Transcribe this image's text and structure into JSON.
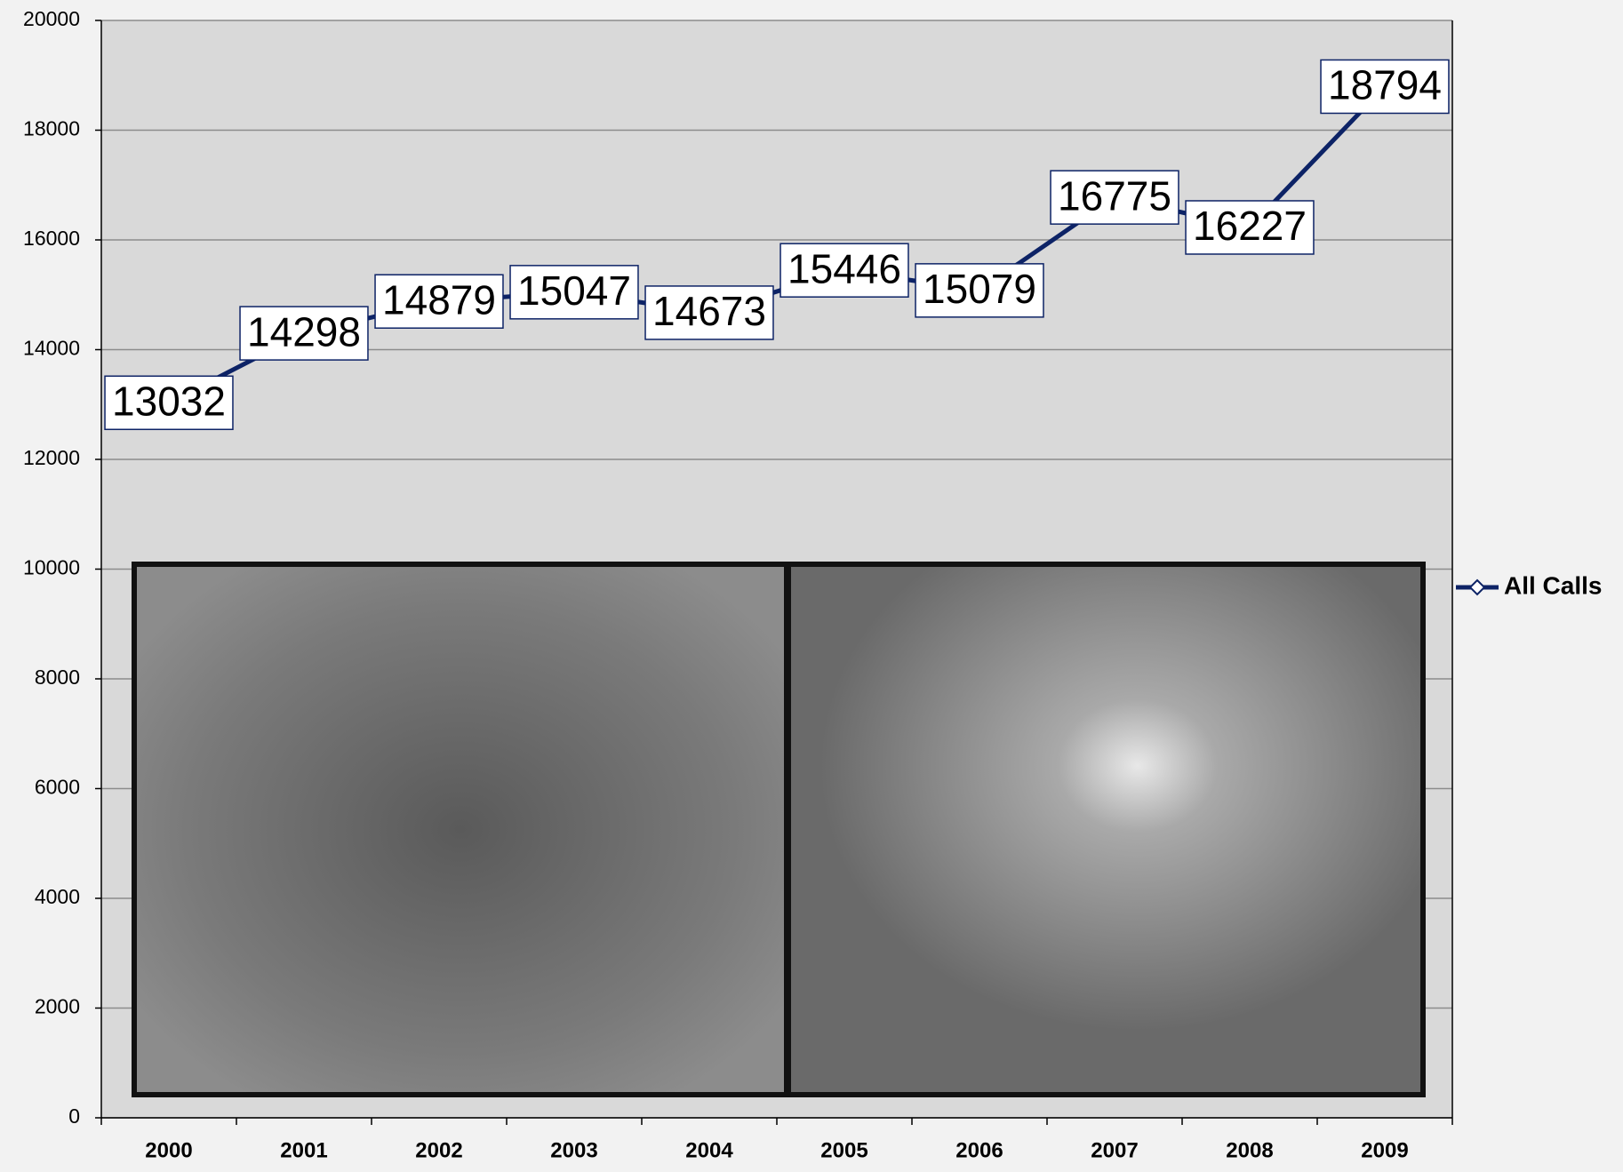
{
  "chart_data": {
    "type": "line",
    "categories": [
      "2000",
      "2001",
      "2002",
      "2003",
      "2004",
      "2005",
      "2006",
      "2007",
      "2008",
      "2009"
    ],
    "series": [
      {
        "name": "All Calls",
        "color": "#0d2366",
        "values": [
          13032,
          14298,
          14879,
          15047,
          14673,
          15446,
          15079,
          16775,
          16227,
          18794
        ]
      }
    ],
    "ylim": [
      0,
      20000
    ],
    "yticks": [
      0,
      2000,
      4000,
      6000,
      8000,
      10000,
      12000,
      14000,
      16000,
      18000,
      20000
    ],
    "grid": true,
    "legend": "right"
  }
}
